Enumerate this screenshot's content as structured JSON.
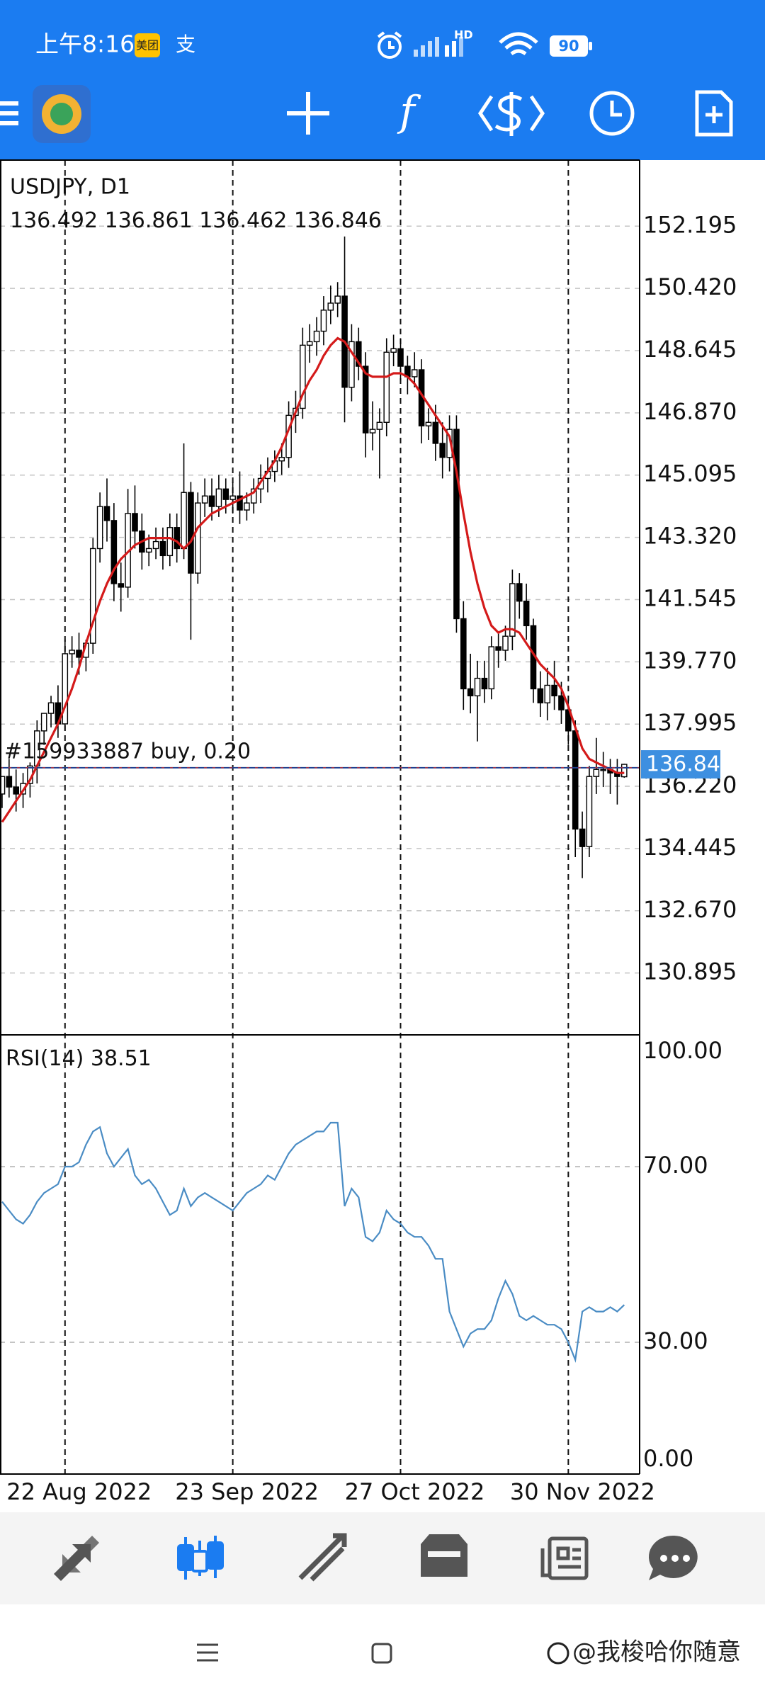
{
  "status_bar": {
    "time": "上午8:16",
    "app_badges": [
      "美团",
      "支"
    ],
    "network": "HD",
    "battery": "90"
  },
  "watermark": "@我梭哈你随意",
  "chart_data": [
    {
      "type": "candlestick",
      "title": "USDJPY, D1",
      "categories": [
        null,
        null,
        null,
        null,
        null,
        null,
        null,
        null,
        null,
        "22 Aug 2022",
        null,
        null,
        null,
        null,
        null,
        null,
        null,
        null,
        null,
        null,
        null,
        null,
        null,
        null,
        null,
        null,
        null,
        null,
        null,
        null,
        null,
        null,
        null,
        "23 Sep 2022",
        null,
        null,
        null,
        null,
        null,
        null,
        null,
        null,
        null,
        null,
        null,
        null,
        null,
        null,
        null,
        null,
        null,
        null,
        null,
        null,
        null,
        null,
        null,
        "27 Oct 2022",
        null,
        null,
        null,
        null,
        null,
        null,
        null,
        null,
        null,
        null,
        null,
        null,
        null,
        null,
        null,
        null,
        null,
        null,
        null,
        null,
        null,
        null,
        null,
        "30 Nov 2022",
        null,
        null,
        null,
        null,
        null,
        null,
        null,
        null
      ],
      "open": [
        136.0,
        136.5,
        136.2,
        136.0,
        136.3,
        136.8,
        137.8,
        138.3,
        138.6,
        138.0,
        140.0,
        140.1,
        139.9,
        140.3,
        143.0,
        144.2,
        143.8,
        142.0,
        141.9,
        144.0,
        143.5,
        142.9,
        143.0,
        143.2,
        142.8,
        143.6,
        143.0,
        144.6,
        142.3,
        144.3,
        144.5,
        144.2,
        144.7,
        144.4,
        144.5,
        144.1,
        144.3,
        144.7,
        145.0,
        145.2,
        145.5,
        145.6,
        146.8,
        147.0,
        148.8,
        148.9,
        149.2,
        149.8,
        150.0,
        150.2,
        147.6,
        148.9,
        148.2,
        146.3,
        146.4,
        146.6,
        148.6,
        148.7,
        148.2,
        147.9,
        148.1,
        146.5,
        146.6,
        146.0,
        145.6,
        146.4,
        141.0,
        139.0,
        138.8,
        139.3,
        139.0,
        140.2,
        140.1,
        140.5,
        142.0,
        141.5,
        140.8,
        139.0,
        138.6,
        139.1,
        138.8,
        138.4,
        137.8,
        135.0,
        134.5,
        136.5,
        136.7,
        136.7,
        136.6,
        136.492
      ],
      "high": [
        136.5,
        137.0,
        136.7,
        136.6,
        136.9,
        138.1,
        138.3,
        138.8,
        139.1,
        140.4,
        140.5,
        140.6,
        140.4,
        143.3,
        144.6,
        145.0,
        144.3,
        142.6,
        144.7,
        144.8,
        144.0,
        143.4,
        143.6,
        143.6,
        144.0,
        144.0,
        146.0,
        144.9,
        144.6,
        145.0,
        145.0,
        145.1,
        145.0,
        144.9,
        145.2,
        144.6,
        145.0,
        145.4,
        145.6,
        145.8,
        146.0,
        147.2,
        147.5,
        149.3,
        149.4,
        149.6,
        150.2,
        150.5,
        150.6,
        151.9,
        149.4,
        149.3,
        148.6,
        147.2,
        147.0,
        149.0,
        149.1,
        149.0,
        148.5,
        148.6,
        148.4,
        147.0,
        147.1,
        146.6,
        146.8,
        146.8,
        141.5,
        140.0,
        139.8,
        139.8,
        140.5,
        140.6,
        140.8,
        142.4,
        142.3,
        142.0,
        141.0,
        139.5,
        139.6,
        139.8,
        139.2,
        138.8,
        138.1,
        135.5,
        136.8,
        137.6,
        137.2,
        137.0,
        137.0,
        136.861
      ],
      "low": [
        135.6,
        135.9,
        135.5,
        135.6,
        135.9,
        136.3,
        137.4,
        137.9,
        137.6,
        137.8,
        139.6,
        139.4,
        139.5,
        140.0,
        142.6,
        143.2,
        141.5,
        141.2,
        141.6,
        143.0,
        142.4,
        142.5,
        142.7,
        142.4,
        142.5,
        142.6,
        142.7,
        140.4,
        142.0,
        143.9,
        143.8,
        143.9,
        144.0,
        144.0,
        143.7,
        143.8,
        144.0,
        144.3,
        144.6,
        144.9,
        145.1,
        145.3,
        146.3,
        146.7,
        148.3,
        148.5,
        148.8,
        149.4,
        149.6,
        146.6,
        147.2,
        147.8,
        145.6,
        145.8,
        145.0,
        146.2,
        148.2,
        147.8,
        147.4,
        147.6,
        146.0,
        146.1,
        145.5,
        145.0,
        145.2,
        140.6,
        138.4,
        138.3,
        137.5,
        138.6,
        138.7,
        139.6,
        139.8,
        140.1,
        141.0,
        140.4,
        138.6,
        138.2,
        138.1,
        138.4,
        138.0,
        137.4,
        134.2,
        133.6,
        134.2,
        136.0,
        136.2,
        136.0,
        135.7,
        136.462
      ],
      "close": [
        136.5,
        136.2,
        136.0,
        136.3,
        136.8,
        137.8,
        138.3,
        138.6,
        138.0,
        140.0,
        140.1,
        139.9,
        140.3,
        143.0,
        144.2,
        143.8,
        142.0,
        141.9,
        144.0,
        143.5,
        142.9,
        143.0,
        143.2,
        142.8,
        143.6,
        143.0,
        144.6,
        142.3,
        144.3,
        144.5,
        144.2,
        144.7,
        144.4,
        144.5,
        144.1,
        144.3,
        144.7,
        145.0,
        145.2,
        145.5,
        145.6,
        146.8,
        147.0,
        148.8,
        148.9,
        149.2,
        149.8,
        150.0,
        150.2,
        147.6,
        148.9,
        148.2,
        146.3,
        146.4,
        146.6,
        148.6,
        148.7,
        148.2,
        147.9,
        148.1,
        146.5,
        146.6,
        146.0,
        145.6,
        146.4,
        141.0,
        139.0,
        138.8,
        139.3,
        139.0,
        140.2,
        140.1,
        140.5,
        142.0,
        141.5,
        140.8,
        139.0,
        138.6,
        139.1,
        138.8,
        138.4,
        137.8,
        135.0,
        134.5,
        136.5,
        136.7,
        136.7,
        136.6,
        136.5,
        136.846
      ],
      "up_color": "#ffffff",
      "down_color": "#000000",
      "edge_color": "#000000",
      "ma": {
        "color": "#d41a1a",
        "values": [
          135.2,
          135.5,
          135.8,
          136.1,
          136.4,
          136.8,
          137.2,
          137.6,
          138.0,
          138.5,
          139.0,
          139.6,
          140.3,
          140.9,
          141.5,
          142.0,
          142.4,
          142.7,
          142.9,
          143.1,
          143.2,
          143.3,
          143.3,
          143.3,
          143.3,
          143.2,
          143.0,
          143.2,
          143.6,
          143.8,
          144.0,
          144.1,
          144.2,
          144.3,
          144.4,
          144.5,
          144.6,
          144.9,
          145.2,
          145.5,
          145.9,
          146.4,
          146.9,
          147.4,
          147.8,
          148.1,
          148.5,
          148.8,
          149.0,
          148.9,
          148.6,
          148.3,
          148.0,
          147.9,
          147.9,
          147.9,
          148.0,
          148.0,
          147.9,
          147.7,
          147.4,
          147.1,
          146.8,
          146.5,
          146.2,
          145.2,
          144.0,
          142.9,
          142.0,
          141.3,
          140.8,
          140.6,
          140.7,
          140.7,
          140.6,
          140.3,
          140.0,
          139.7,
          139.5,
          139.3,
          139.0,
          138.5,
          137.9,
          137.3,
          137.0,
          136.9,
          136.8,
          136.7,
          136.6,
          136.6
        ]
      },
      "position": {
        "label": "#159933887 buy, 0.20",
        "price": 136.75,
        "color": "#1f3f8f"
      },
      "bid_color": "#3d8fe0",
      "ylim": [
        129.13,
        154.08
      ],
      "yticks": [
        152.195,
        {
          "value": 150.42,
          "label": "150.420"
        },
        148.645,
        {
          "value": 146.87,
          "label": "146.870"
        },
        145.095,
        {
          "value": 143.32,
          "label": "143.320"
        },
        141.545,
        {
          "value": 139.77,
          "label": "139.770"
        },
        137.995,
        {
          "value": 136.22,
          "label": "136.220"
        },
        134.445,
        {
          "value": 132.67,
          "label": "132.670"
        },
        130.895
      ],
      "grid": true
    },
    {
      "type": "line",
      "title": "RSI(14)",
      "color": "#4a8cc4",
      "values": [
        62,
        60,
        58,
        57,
        59,
        62,
        64,
        65,
        66,
        70,
        70,
        71,
        75,
        78,
        79,
        73,
        70,
        72,
        74,
        68,
        66,
        67,
        65,
        62,
        59,
        60,
        65,
        61,
        63,
        64,
        63,
        62,
        61,
        60,
        62,
        64,
        65,
        66,
        68,
        67,
        70,
        73,
        75,
        76,
        77,
        78,
        78,
        80,
        80,
        61,
        65,
        63,
        54,
        53,
        55,
        60,
        58,
        57,
        55,
        54,
        54,
        52,
        49,
        49,
        37,
        33,
        29,
        32,
        33,
        33,
        35,
        40,
        44,
        41,
        36,
        35,
        36,
        35,
        34,
        34,
        33,
        30,
        26,
        37,
        38,
        37,
        37,
        38,
        37,
        38.51
      ],
      "ylim": [
        0,
        100
      ],
      "yticks": [
        {
          "value": 100,
          "label": "100.00"
        },
        {
          "value": 70,
          "label": "70.00"
        },
        {
          "value": 30,
          "label": "30.00"
        },
        {
          "value": 0,
          "label": "0.00"
        }
      ],
      "grid": true
    }
  ]
}
